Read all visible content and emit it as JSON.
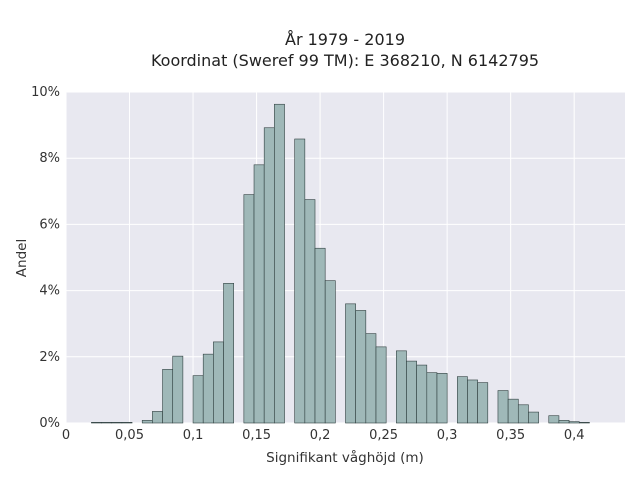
{
  "chart_data": {
    "type": "bar",
    "title": "År 1979 - 2019",
    "subtitle": "Koordinat (Sweref 99 TM): E 368210, N 6142795",
    "xlabel": "Signifikant våghöjd (m)",
    "ylabel": "Andel",
    "xlim": [
      0,
      0.44
    ],
    "ylim": [
      0,
      10
    ],
    "x_ticks": [
      0,
      0.05,
      0.1,
      0.15,
      0.2,
      0.25,
      0.3,
      0.35,
      0.4
    ],
    "x_tick_labels": [
      "0",
      "0,05",
      "0,1",
      "0,15",
      "0,2",
      "0,25",
      "0,3",
      "0,35",
      "0,4"
    ],
    "y_ticks": [
      0,
      2,
      4,
      6,
      8,
      10
    ],
    "y_tick_labels": [
      "0%",
      "2%",
      "4%",
      "6%",
      "8%",
      "10%"
    ],
    "grid": true,
    "bin_width": 0.008,
    "bin_start": [
      0.02,
      0.028,
      0.036,
      0.044,
      0.052,
      0.06,
      0.068,
      0.076,
      0.084,
      0.1,
      0.108,
      0.116,
      0.124,
      0.14,
      0.148,
      0.156,
      0.164,
      0.18,
      0.188,
      0.196,
      0.204,
      0.22,
      0.228,
      0.236,
      0.244,
      0.26,
      0.268,
      0.276,
      0.284,
      0.292,
      0.308,
      0.316,
      0.324,
      0.34,
      0.348,
      0.356,
      0.364,
      0.38,
      0.388,
      0.396,
      0.404
    ],
    "values": [
      0.02,
      0.02,
      0.02,
      0.02,
      0.0,
      0.08,
      0.35,
      1.62,
      2.02,
      1.43,
      2.08,
      2.45,
      4.22,
      6.9,
      7.8,
      8.92,
      9.63,
      8.58,
      6.75,
      5.28,
      4.3,
      3.6,
      3.4,
      2.7,
      2.3,
      2.18,
      1.87,
      1.75,
      1.52,
      1.5,
      1.4,
      1.3,
      1.22,
      0.98,
      0.72,
      0.55,
      0.33,
      0.22,
      0.08,
      0.04,
      0.02
    ],
    "bar_color": "#9fb8b8",
    "bar_edge_color": "#2f3f3f",
    "plot_background": "#e8e8f0",
    "grid_color": "#ffffff"
  }
}
